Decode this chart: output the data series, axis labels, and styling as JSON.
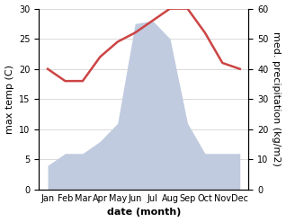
{
  "months": [
    "Jan",
    "Feb",
    "Mar",
    "Apr",
    "May",
    "Jun",
    "Jul",
    "Aug",
    "Sep",
    "Oct",
    "Nov",
    "Dec"
  ],
  "temperature": [
    20,
    18,
    18,
    22,
    24.5,
    26,
    28,
    30,
    30,
    26,
    21,
    20
  ],
  "precipitation": [
    8,
    12,
    12,
    16,
    22,
    55,
    56,
    50,
    22,
    12,
    12,
    12
  ],
  "temp_color": "#cc4444",
  "precip_color": "#c0cbdf",
  "ylim_temp": [
    0,
    30
  ],
  "ylim_precip": [
    0,
    60
  ],
  "xlabel": "date (month)",
  "ylabel_left": "max temp (C)",
  "ylabel_right": "med. precipitation (kg/m2)",
  "bg_color": "#ffffff",
  "grid_color": "#cccccc",
  "label_fontsize": 8,
  "tick_fontsize": 7
}
